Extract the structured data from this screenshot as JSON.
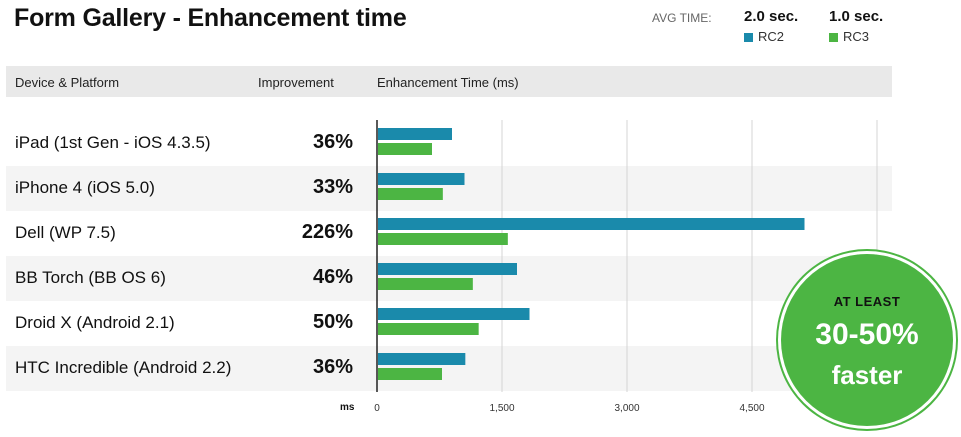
{
  "title": "Form Gallery - Enhancement time",
  "legend": {
    "label": "AVG TIME:",
    "items": [
      {
        "value": "2.0 sec.",
        "series": "RC2",
        "color": "#1a8aab"
      },
      {
        "value": "1.0 sec.",
        "series": "RC3",
        "color": "#4cb543"
      }
    ]
  },
  "headers": {
    "device": "Device & Platform",
    "improvement": "Improvement",
    "time": "Enhancement Time (ms)"
  },
  "rows": [
    {
      "device": "iPad (1st Gen - iOS 4.3.5)",
      "improvement": "36%"
    },
    {
      "device": "iPhone 4 (iOS 5.0)",
      "improvement": "33%"
    },
    {
      "device": "Dell (WP 7.5)",
      "improvement": "226%"
    },
    {
      "device": "BB Torch (BB OS 6)",
      "improvement": "46%"
    },
    {
      "device": "Droid X (Android 2.1)",
      "improvement": "50%"
    },
    {
      "device": "HTC Incredible (Android 2.2)",
      "improvement": "36%"
    }
  ],
  "axis": {
    "unit": "ms",
    "ticks": [
      "0",
      "1,500",
      "3,000",
      "4,500"
    ]
  },
  "badge": {
    "top": "AT LEAST",
    "big": "30-50%",
    "sub": "faster"
  },
  "chart_data": {
    "type": "bar",
    "orientation": "horizontal",
    "title": "Form Gallery - Enhancement time",
    "xlabel": "ms",
    "ylabel": "",
    "categories": [
      "iPad (1st Gen - iOS 4.3.5)",
      "iPhone 4 (iOS 5.0)",
      "Dell (WP 7.5)",
      "BB Torch (BB OS 6)",
      "Droid X (Android 2.1)",
      "HTC Incredible (Android 2.2)"
    ],
    "series": [
      {
        "name": "RC2",
        "color": "#1a8aab",
        "values": [
          900,
          1050,
          5130,
          1680,
          1830,
          1060
        ]
      },
      {
        "name": "RC3",
        "color": "#4cb543",
        "values": [
          660,
          790,
          1570,
          1150,
          1220,
          780
        ]
      }
    ],
    "xlim": [
      0,
      6000
    ],
    "xticks": [
      0,
      1500,
      3000,
      4500
    ],
    "grid": true
  }
}
